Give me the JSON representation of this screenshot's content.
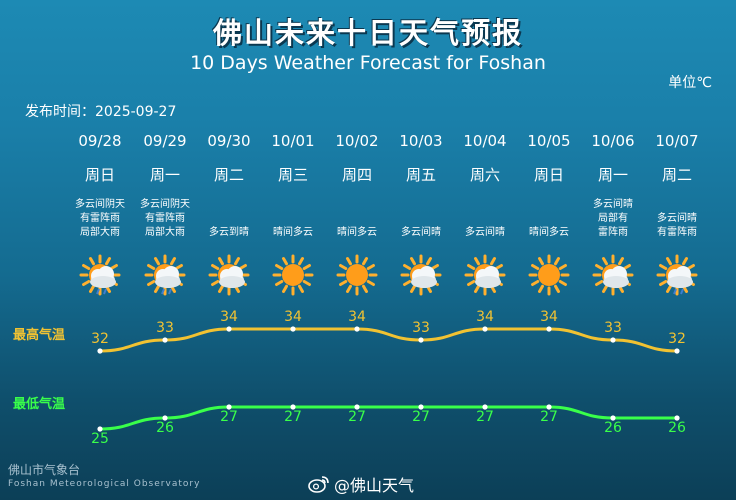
{
  "header": {
    "title_cn": "佛山未来十日天气预报",
    "title_en": "10 Days Weather Forecast for Foshan",
    "unit_label": "单位℃",
    "publish_time": "发布时间：2025-09-27"
  },
  "labels": {
    "high": "最高气温",
    "low": "最低气温"
  },
  "days": [
    {
      "date": "09/28",
      "weekday": "周日",
      "desc": "多云间阴天\n有雷阵雨\n局部大雨",
      "icon": "sun-cloud-rain-icon",
      "high": "32",
      "low": "25"
    },
    {
      "date": "09/29",
      "weekday": "周一",
      "desc": "多云间阴天\n有雷阵雨\n局部大雨",
      "icon": "sun-cloud-rain-icon",
      "high": "33",
      "low": "26"
    },
    {
      "date": "09/30",
      "weekday": "周二",
      "desc": "多云到晴",
      "icon": "sun-cloud-icon",
      "high": "34",
      "low": "27"
    },
    {
      "date": "10/01",
      "weekday": "周三",
      "desc": "晴间多云",
      "icon": "sun-icon",
      "high": "34",
      "low": "27"
    },
    {
      "date": "10/02",
      "weekday": "周四",
      "desc": "晴间多云",
      "icon": "sun-icon",
      "high": "34",
      "low": "27"
    },
    {
      "date": "10/03",
      "weekday": "周五",
      "desc": "多云间晴",
      "icon": "sun-cloud-icon",
      "high": "33",
      "low": "27"
    },
    {
      "date": "10/04",
      "weekday": "周六",
      "desc": "多云间晴",
      "icon": "sun-cloud-icon",
      "high": "34",
      "low": "27"
    },
    {
      "date": "10/05",
      "weekday": "周日",
      "desc": "晴间多云",
      "icon": "sun-icon",
      "high": "34",
      "low": "27"
    },
    {
      "date": "10/06",
      "weekday": "周一",
      "desc": "多云间晴\n局部有\n雷阵雨",
      "icon": "sun-cloud-icon",
      "high": "33",
      "low": "26"
    },
    {
      "date": "10/07",
      "weekday": "周二",
      "desc": "多云间晴\n有雷阵雨",
      "icon": "sun-cloud-rain-icon",
      "high": "32",
      "low": "26"
    }
  ],
  "chart_data": {
    "type": "line",
    "categories": [
      "09/28",
      "09/29",
      "09/30",
      "10/01",
      "10/02",
      "10/03",
      "10/04",
      "10/05",
      "10/06",
      "10/07"
    ],
    "series": [
      {
        "name": "最高气温",
        "values": [
          32,
          33,
          34,
          34,
          34,
          33,
          34,
          34,
          33,
          32
        ]
      },
      {
        "name": "最低气温",
        "values": [
          25,
          26,
          27,
          27,
          27,
          27,
          27,
          27,
          26,
          26
        ]
      }
    ]
  },
  "colors": {
    "high": "#f1c232",
    "low": "#39ff4a",
    "sun": "#ff9d1a",
    "cloud": "#e8eef2"
  },
  "footer": {
    "org_cn": "佛山市气象台",
    "org_en": "Foshan Meteorological Observatory",
    "weibo": "@佛山天气"
  }
}
